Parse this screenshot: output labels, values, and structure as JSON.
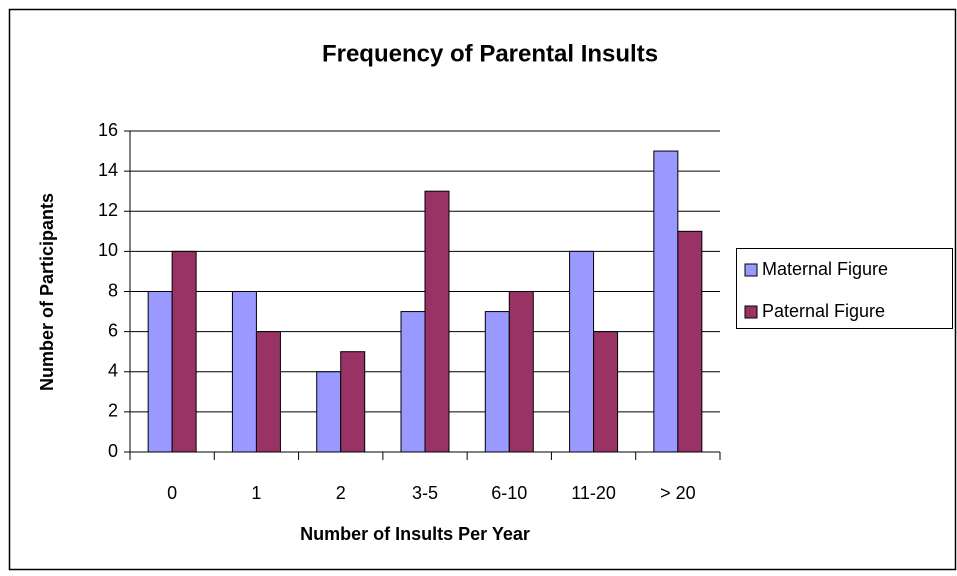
{
  "chart_data": {
    "type": "bar",
    "title": "Frequency of Parental Insults",
    "x_label": "Number of Insults Per Year",
    "y_label": "Number of Participants",
    "categories": [
      "0",
      "1",
      "2",
      "3-5",
      "6-10",
      "11-20",
      "> 20"
    ],
    "series": [
      {
        "name": "Maternal Figure",
        "color": "#9999ff",
        "values": [
          8,
          8,
          4,
          7,
          7,
          10,
          15
        ]
      },
      {
        "name": "Paternal Figure",
        "color": "#993366",
        "values": [
          10,
          6,
          5,
          13,
          8,
          6,
          11
        ]
      }
    ],
    "ylim": [
      0,
      16
    ],
    "yticks": [
      0,
      2,
      4,
      6,
      8,
      10,
      12,
      14,
      16
    ],
    "grid": true,
    "legend": "right"
  }
}
